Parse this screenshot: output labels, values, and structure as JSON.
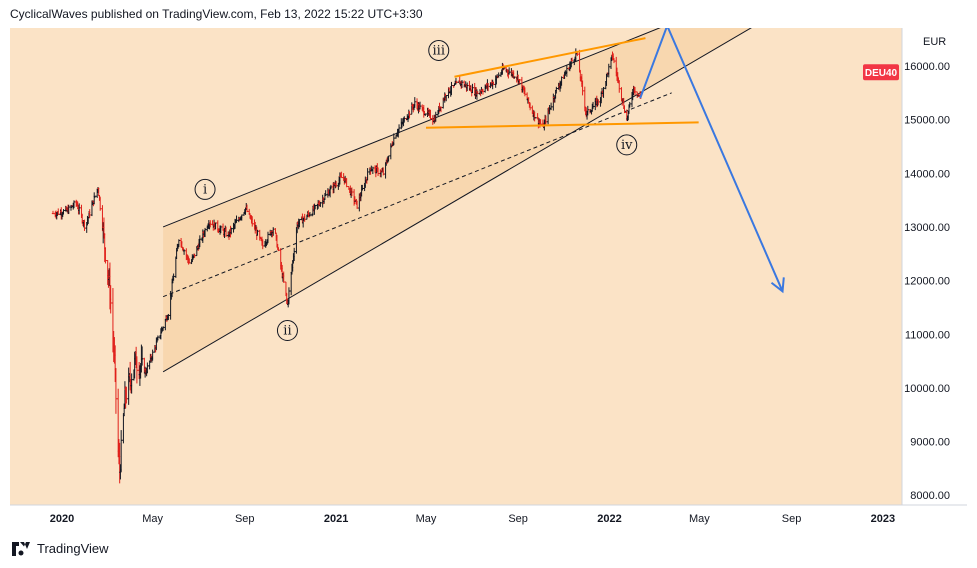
{
  "header": {
    "text": "CyclicalWaves published on TradingView.com, Feb 13, 2022 15:22 UTC+3:30"
  },
  "footer": {
    "brand": "TradingView",
    "logo_icon": "tradingview-logo-icon"
  },
  "colors": {
    "background": "#fbe3c6",
    "channel_fill": "#f7cfa0",
    "candle_up": "#131722",
    "candle_down": "#e0201b",
    "orange_line": "#ff9800",
    "projection": "#3a78e0",
    "price_badge": "#f23645",
    "axis_text": "#131722"
  },
  "chart_data": {
    "type": "ohlc-line",
    "symbol": "DEU40",
    "currency": "EUR",
    "x_tick_labels": [
      "2020",
      "May",
      "Sep",
      "2021",
      "May",
      "Sep",
      "2022",
      "May",
      "Sep",
      "2023"
    ],
    "y_tick_labels": [
      "16000.00",
      "15000.00",
      "14000.00",
      "13000.00",
      "12000.00",
      "11000.00",
      "10000.00",
      "9000.00",
      "8000.00"
    ],
    "ylim": [
      7750,
      16900
    ],
    "price_series_approx": [
      [
        "2019-12-20",
        13250
      ],
      [
        "2020-01-08",
        13300
      ],
      [
        "2020-01-20",
        13450
      ],
      [
        "2020-02-01",
        13000
      ],
      [
        "2020-02-18",
        13750
      ],
      [
        "2020-02-25",
        12900
      ],
      [
        "2020-03-05",
        11800
      ],
      [
        "2020-03-11",
        10500
      ],
      [
        "2020-03-16",
        8800
      ],
      [
        "2020-03-18",
        8450
      ],
      [
        "2020-03-25",
        9800
      ],
      [
        "2020-04-08",
        10500
      ],
      [
        "2020-04-22",
        10300
      ],
      [
        "2020-05-08",
        10900
      ],
      [
        "2020-05-22",
        11400
      ],
      [
        "2020-06-05",
        12800
      ],
      [
        "2020-06-20",
        12300
      ],
      [
        "2020-07-15",
        13100
      ],
      [
        "2020-08-10",
        12850
      ],
      [
        "2020-09-02",
        13350
      ],
      [
        "2020-09-25",
        12650
      ],
      [
        "2020-10-10",
        13000
      ],
      [
        "2020-10-28",
        11550
      ],
      [
        "2020-11-10",
        13050
      ],
      [
        "2020-12-01",
        13300
      ],
      [
        "2020-12-28",
        13750
      ],
      [
        "2021-01-10",
        13950
      ],
      [
        "2021-01-29",
        13400
      ],
      [
        "2021-02-15",
        14100
      ],
      [
        "2021-03-05",
        14000
      ],
      [
        "2021-03-20",
        14700
      ],
      [
        "2021-04-16",
        15300
      ],
      [
        "2021-05-12",
        15000
      ],
      [
        "2021-05-28",
        15500
      ],
      [
        "2021-06-15",
        15700
      ],
      [
        "2021-07-08",
        15500
      ],
      [
        "2021-07-30",
        15700
      ],
      [
        "2021-08-13",
        15950
      ],
      [
        "2021-08-31",
        15800
      ],
      [
        "2021-09-20",
        15150
      ],
      [
        "2021-10-04",
        14850
      ],
      [
        "2021-10-22",
        15550
      ],
      [
        "2021-11-18",
        16250
      ],
      [
        "2021-12-01",
        15100
      ],
      [
        "2021-12-20",
        15400
      ],
      [
        "2022-01-05",
        16200
      ],
      [
        "2022-01-24",
        15000
      ],
      [
        "2022-02-02",
        15600
      ],
      [
        "2022-02-11",
        15400
      ]
    ],
    "last_price_label": "DEU40",
    "wave_labels": [
      {
        "text": "i",
        "date": "2020-07-10",
        "price": 13700
      },
      {
        "text": "ii",
        "date": "2020-10-28",
        "price": 11070
      },
      {
        "text": "iii",
        "date": "2021-05-18",
        "price": 16290
      },
      {
        "text": "iv",
        "date": "2022-01-24",
        "price": 14530
      }
    ],
    "channel": {
      "upper": [
        [
          "2020-05-15",
          13000
        ],
        [
          "2022-03-25",
          16800
        ]
      ],
      "middle": [
        [
          "2020-05-15",
          11700
        ],
        [
          "2022-03-25",
          15500
        ]
      ],
      "lower": [
        [
          "2020-05-15",
          10300
        ],
        [
          "2022-07-20",
          16800
        ]
      ]
    },
    "triangle": {
      "upper": [
        [
          "2021-06-08",
          15800
        ],
        [
          "2022-02-18",
          16520
        ]
      ],
      "lower": [
        [
          "2021-05-01",
          14850
        ],
        [
          "2022-04-30",
          14950
        ]
      ]
    },
    "projection_path": [
      [
        "2022-02-11",
        15400
      ],
      [
        "2022-03-19",
        16750
      ],
      [
        "2022-08-20",
        11800
      ]
    ]
  }
}
